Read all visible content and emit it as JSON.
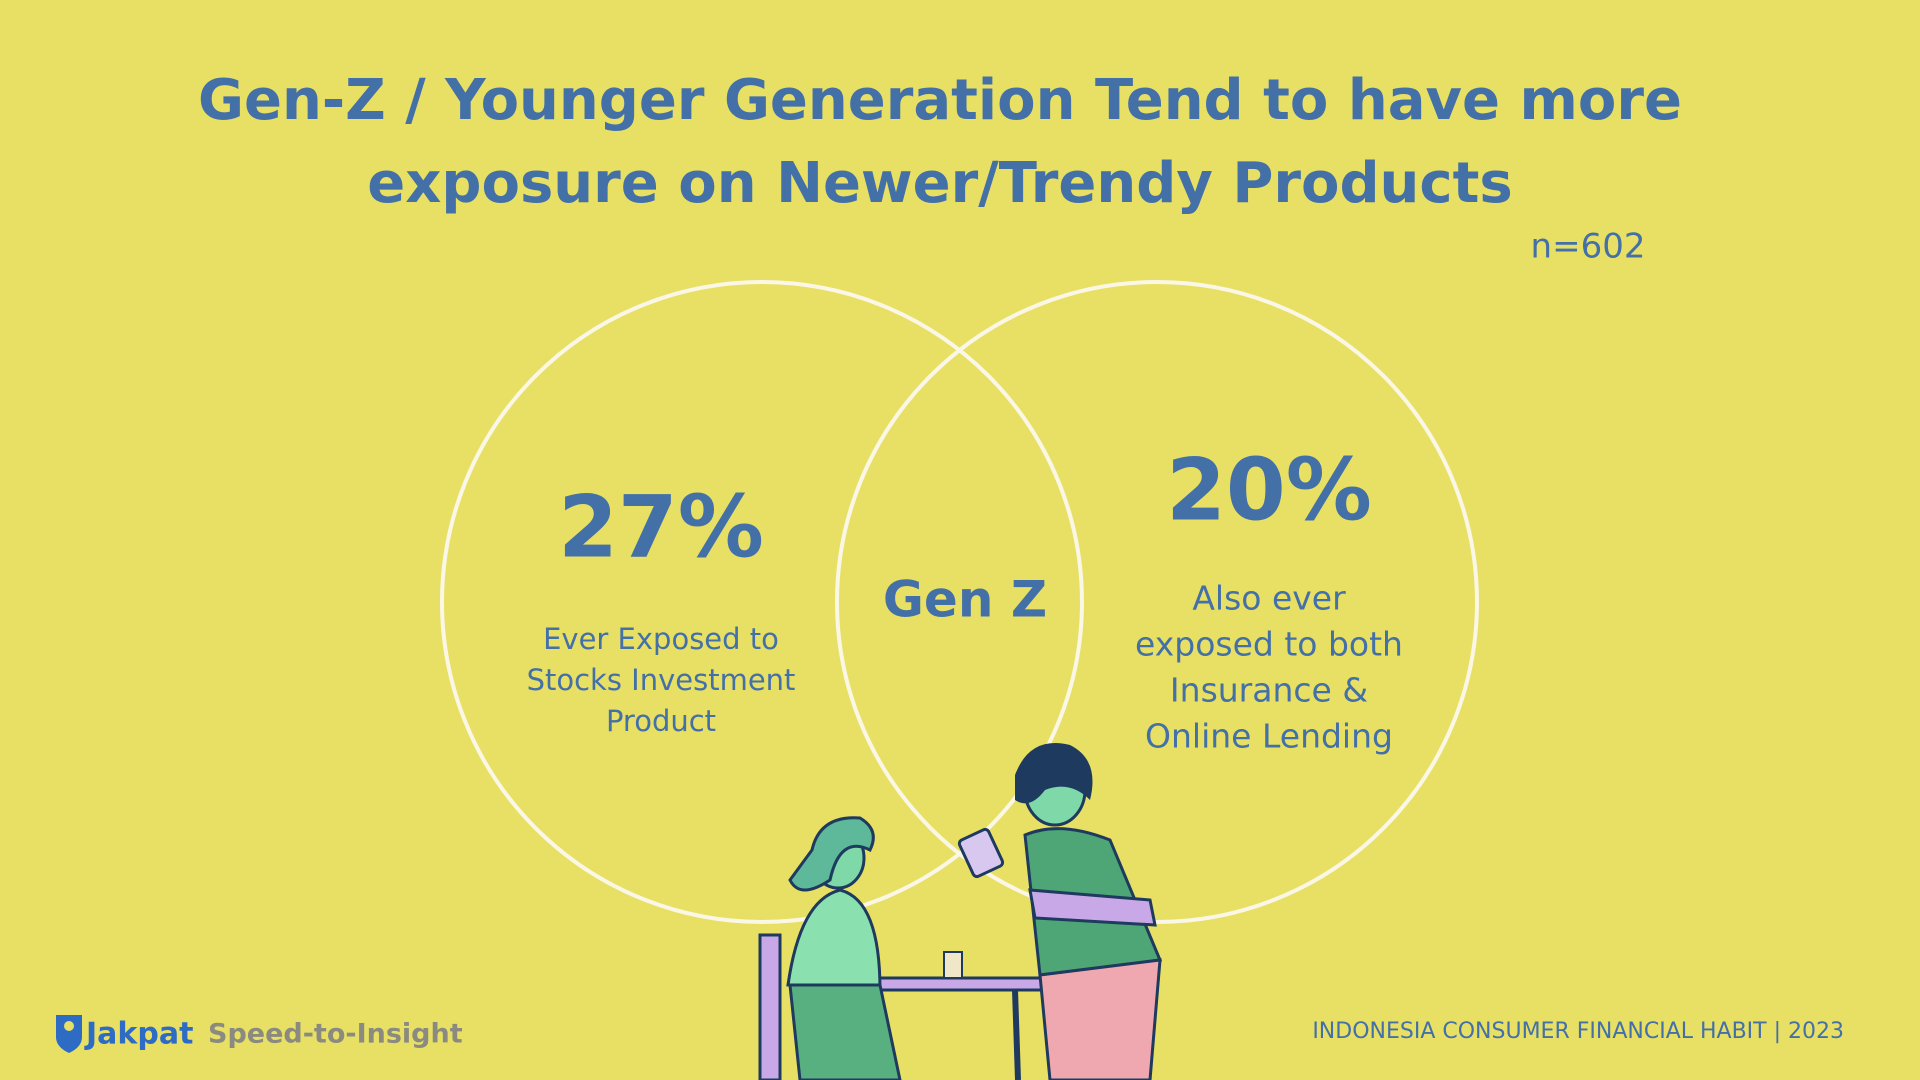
{
  "title": {
    "lines": [
      "Gen-Z / Younger Generation Tend to have more",
      "exposure on Newer/Trendy Products"
    ]
  },
  "sample_size": "n=602",
  "venn": {
    "left": {
      "value": "27%",
      "lines": [
        "Ever Exposed to",
        "Stocks Investment",
        "Product"
      ]
    },
    "center": "Gen Z",
    "right": {
      "value": "20%",
      "lines": [
        "Also ever",
        "exposed to both",
        "Insurance &",
        "Online Lending"
      ]
    }
  },
  "footer": {
    "brand": "Jakpat",
    "tagline": "Speed-to-Insight",
    "source": "INDONESIA CONSUMER FINANCIAL HABIT | 2023"
  }
}
